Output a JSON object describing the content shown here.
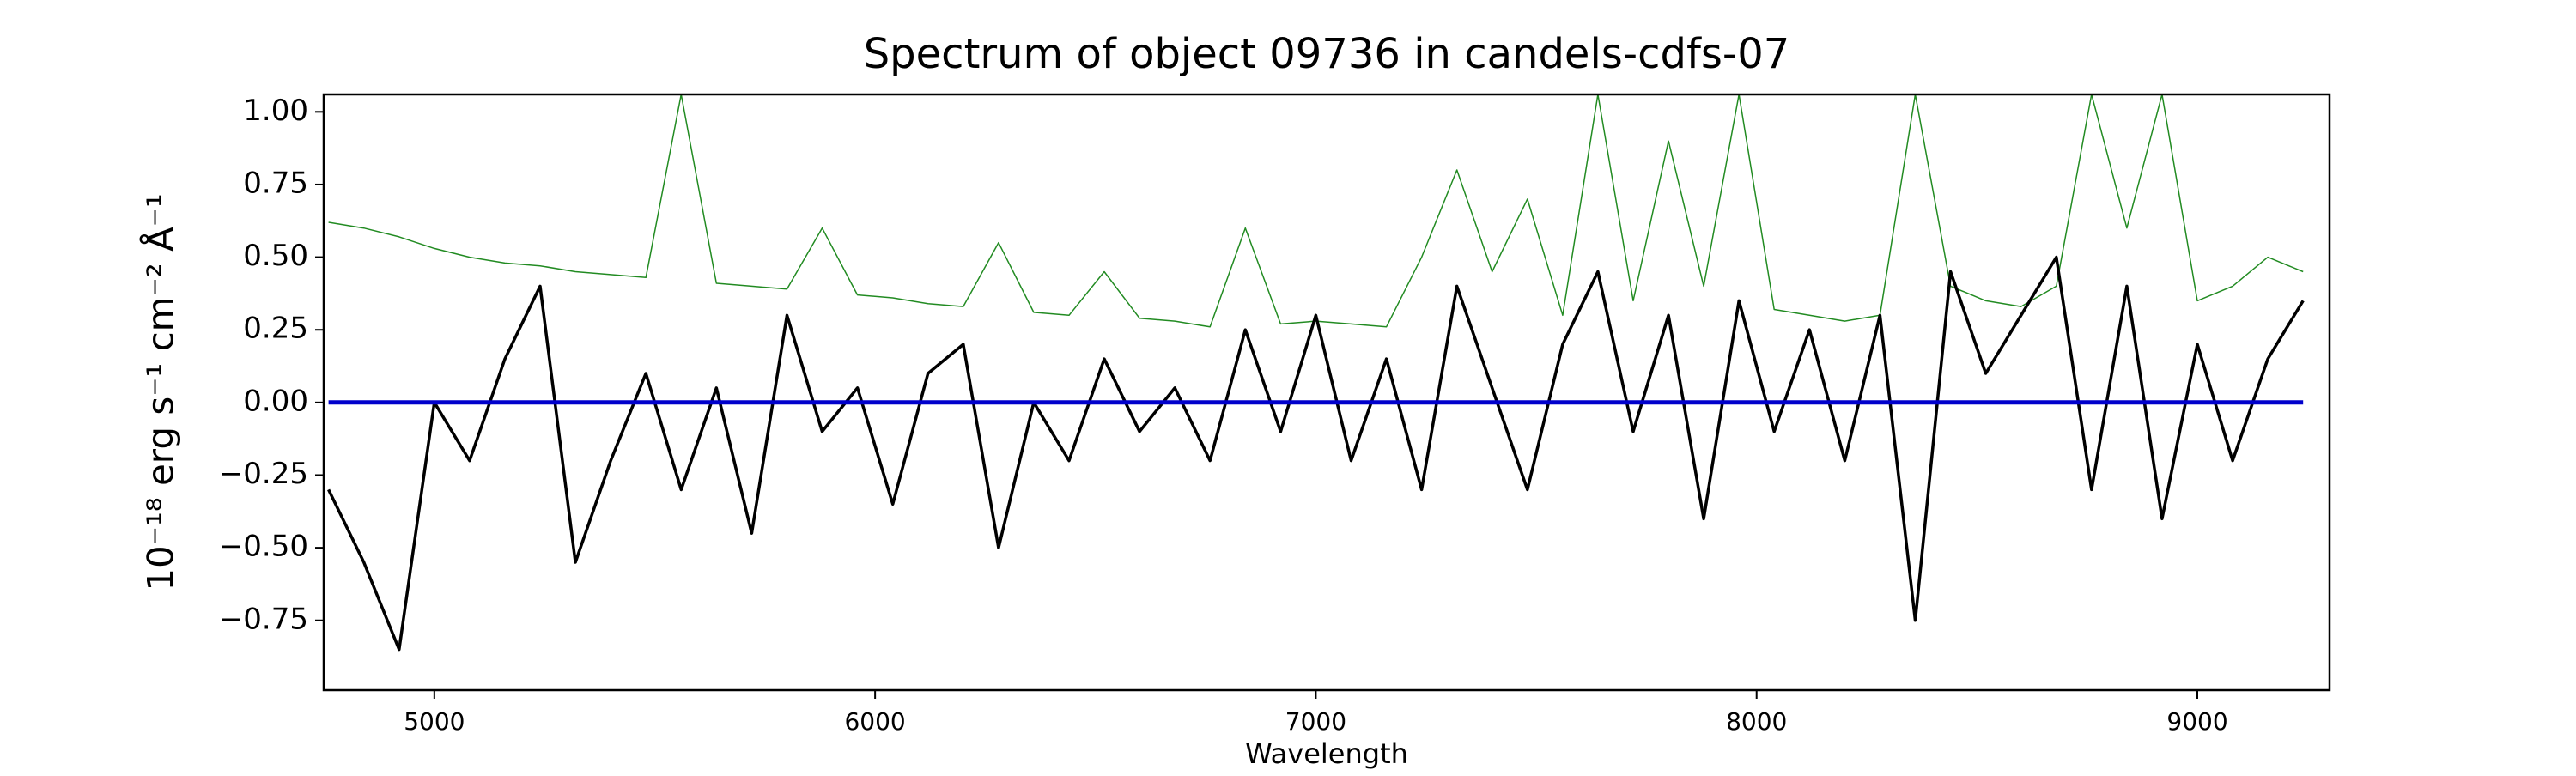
{
  "chart_data": {
    "type": "line",
    "title": "Spectrum of object 09736 in candels-cdfs-07",
    "xlabel": "Wavelength",
    "ylabel": "10⁻¹⁸ erg s⁻¹ cm⁻² Å⁻¹",
    "x": [
      4760,
      4840,
      4920,
      5000,
      5080,
      5160,
      5240,
      5320,
      5400,
      5480,
      5560,
      5640,
      5720,
      5800,
      5880,
      5960,
      6040,
      6120,
      6200,
      6280,
      6360,
      6440,
      6520,
      6600,
      6680,
      6760,
      6840,
      6920,
      7000,
      7080,
      7160,
      7240,
      7320,
      7400,
      7480,
      7560,
      7640,
      7720,
      7800,
      7880,
      7960,
      8040,
      8120,
      8200,
      8280,
      8360,
      8440,
      8520,
      8600,
      8680,
      8760,
      8840,
      8920,
      9000,
      9080,
      9160,
      9240
    ],
    "series": [
      {
        "color": "#228b22",
        "width": 1.5,
        "values": [
          0.62,
          0.6,
          0.57,
          0.53,
          0.5,
          0.48,
          0.47,
          0.45,
          0.44,
          0.43,
          1.06,
          0.41,
          0.4,
          0.39,
          0.6,
          0.37,
          0.36,
          0.34,
          0.33,
          0.55,
          0.31,
          0.3,
          0.45,
          0.29,
          0.28,
          0.26,
          0.6,
          0.27,
          0.28,
          0.27,
          0.26,
          0.5,
          0.8,
          0.45,
          0.7,
          0.3,
          1.06,
          0.35,
          0.9,
          0.4,
          1.06,
          0.32,
          0.3,
          0.28,
          0.3,
          1.06,
          0.4,
          0.35,
          0.33,
          0.4,
          1.06,
          0.6,
          1.06,
          0.35,
          0.4,
          0.5,
          0.45
        ]
      },
      {
        "color": "#000000",
        "width": 3.5,
        "values": [
          -0.3,
          -0.55,
          -0.85,
          0.0,
          -0.2,
          0.15,
          0.4,
          -0.55,
          -0.2,
          0.1,
          -0.3,
          0.05,
          -0.45,
          0.3,
          -0.1,
          0.05,
          -0.35,
          0.1,
          0.2,
          -0.5,
          0.0,
          -0.2,
          0.15,
          -0.1,
          0.05,
          -0.2,
          0.25,
          -0.1,
          0.3,
          -0.2,
          0.15,
          -0.3,
          0.4,
          0.05,
          -0.3,
          0.2,
          0.45,
          -0.1,
          0.3,
          -0.4,
          0.35,
          -0.1,
          0.25,
          -0.2,
          0.3,
          -0.75,
          0.45,
          0.1,
          0.3,
          0.5,
          -0.3,
          0.4,
          -0.4,
          0.2,
          -0.2,
          0.15,
          0.35
        ]
      },
      {
        "color": "#0000cc",
        "width": 5,
        "values": [
          0,
          0,
          0,
          0,
          0,
          0,
          0,
          0,
          0,
          0,
          0,
          0,
          0,
          0,
          0,
          0,
          0,
          0,
          0,
          0,
          0,
          0,
          0,
          0,
          0,
          0,
          0,
          0,
          0,
          0,
          0,
          0,
          0,
          0,
          0,
          0,
          0,
          0,
          0,
          0,
          0,
          0,
          0,
          0,
          0,
          0,
          0,
          0,
          0,
          0,
          0,
          0,
          0,
          0,
          0,
          0,
          0
        ]
      }
    ],
    "xlim": [
      4749,
      9300
    ],
    "ylim": [
      -0.99,
      1.06
    ],
    "xticks": [
      5000,
      6000,
      7000,
      8000,
      9000
    ],
    "yticks": [
      {
        "value": -0.75,
        "label": "−0.75"
      },
      {
        "value": -0.5,
        "label": "−0.50"
      },
      {
        "value": -0.25,
        "label": "−0.25"
      },
      {
        "value": 0,
        "label": "0.00"
      },
      0.25,
      {
        "value": 0.5,
        "label": "0.50"
      },
      0.75,
      {
        "value": 1,
        "label": "1.00"
      }
    ]
  }
}
